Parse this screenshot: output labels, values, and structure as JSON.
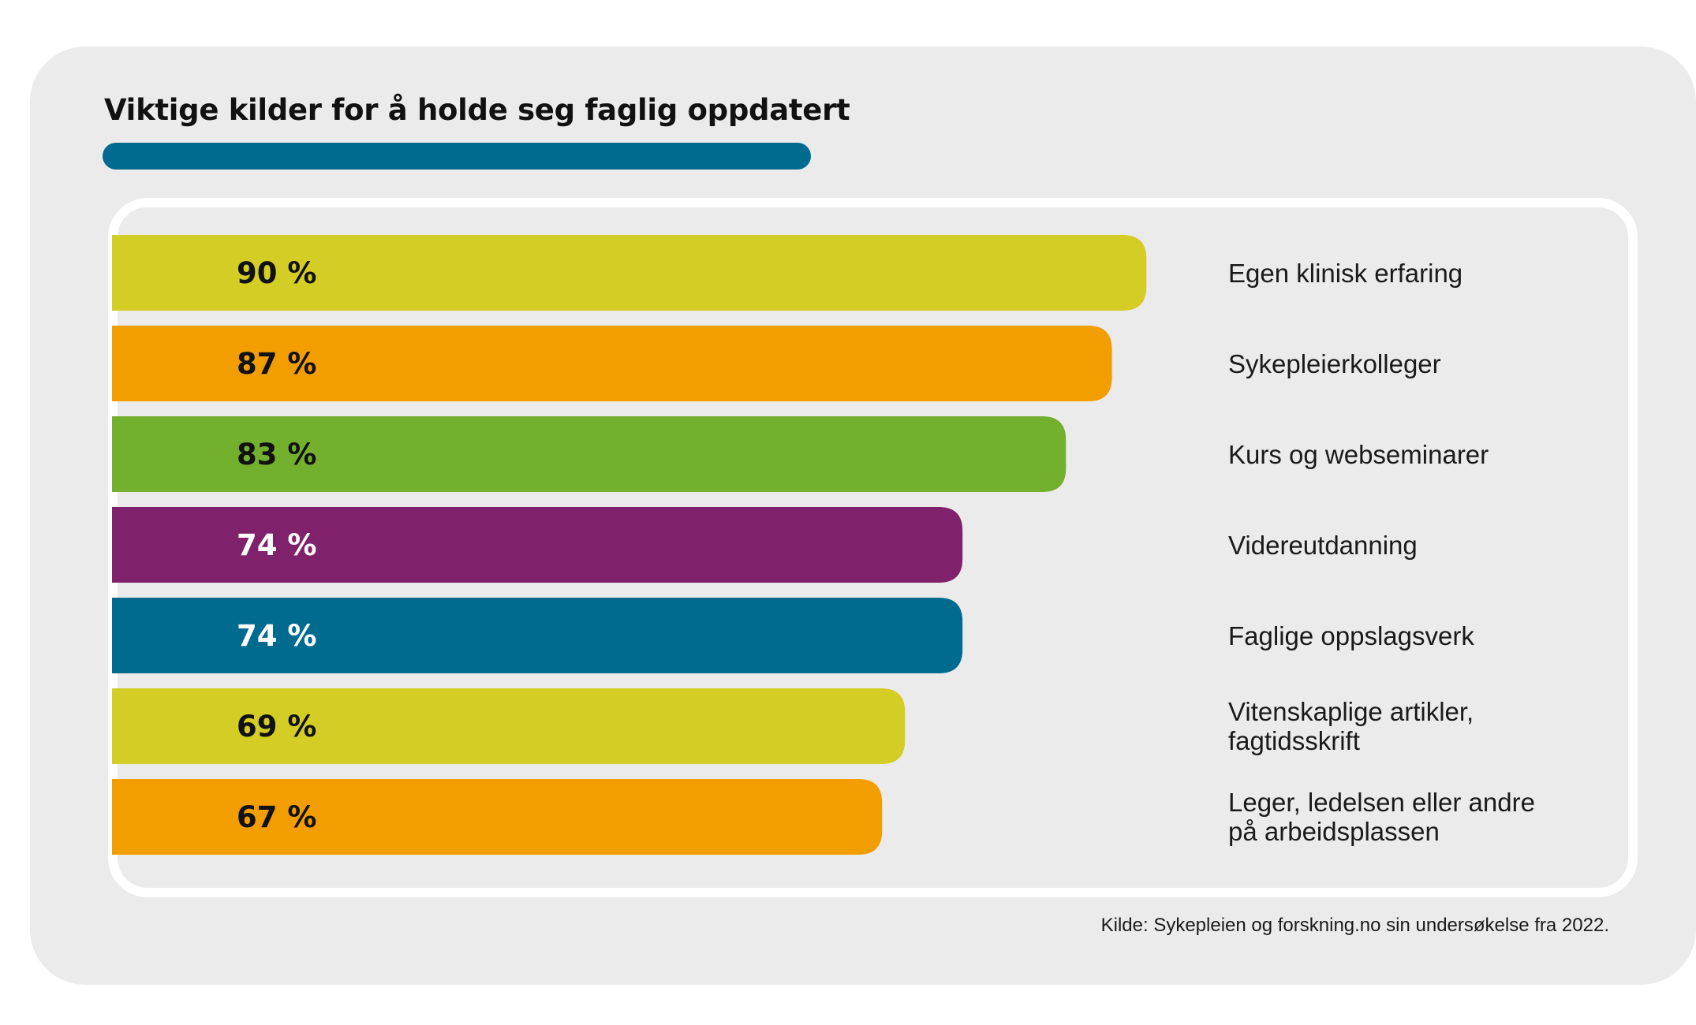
{
  "title": "Viktige kilder for å holde seg faglig oppdatert",
  "source": "Kilde: Sykepleien og forskning.no sin undersøkelse fra 2022.",
  "colors": {
    "background": "#ebebeb",
    "accent": "#006b8e",
    "yellow": "#d4cd25",
    "orange": "#f29d00",
    "green": "#72b02e",
    "purple": "#80226b",
    "teal": "#006b8e"
  },
  "chart_data": {
    "type": "bar",
    "orientation": "horizontal",
    "title": "Viktige kilder for å holde seg faglig oppdatert",
    "categories": [
      "Egen klinisk erfaring",
      "Sykepleierkolleger",
      "Kurs og webseminarer",
      "Videreutdanning",
      "Faglige oppslagsverk",
      "Vitenskaplige artikler, fagtidsskrift",
      "Leger, ledelsen eller andre på arbeidsplassen"
    ],
    "category_lines": [
      [
        "Egen klinisk erfaring"
      ],
      [
        "Sykepleierkolleger"
      ],
      [
        "Kurs og webseminarer"
      ],
      [
        "Videreutdanning"
      ],
      [
        "Faglige oppslagsverk"
      ],
      [
        "Vitenskaplige artikler,",
        "fagtidsskrift"
      ],
      [
        "Leger, ledelsen eller andre",
        "på arbeidsplassen"
      ]
    ],
    "values": [
      90,
      87,
      83,
      74,
      74,
      69,
      67
    ],
    "value_labels": [
      "90 %",
      "87 %",
      "83 %",
      "74 %",
      "74 %",
      "69 %",
      "67 %"
    ],
    "bar_colors": [
      "#d4cd25",
      "#f29d00",
      "#72b02e",
      "#80226b",
      "#006b8e",
      "#d4cd25",
      "#f29d00"
    ],
    "label_colors": [
      "#111111",
      "#111111",
      "#111111",
      "#ffffff",
      "#ffffff",
      "#111111",
      "#111111"
    ],
    "unit": "%",
    "xlabel": "",
    "ylabel": "",
    "grid": false,
    "legend": "none"
  }
}
